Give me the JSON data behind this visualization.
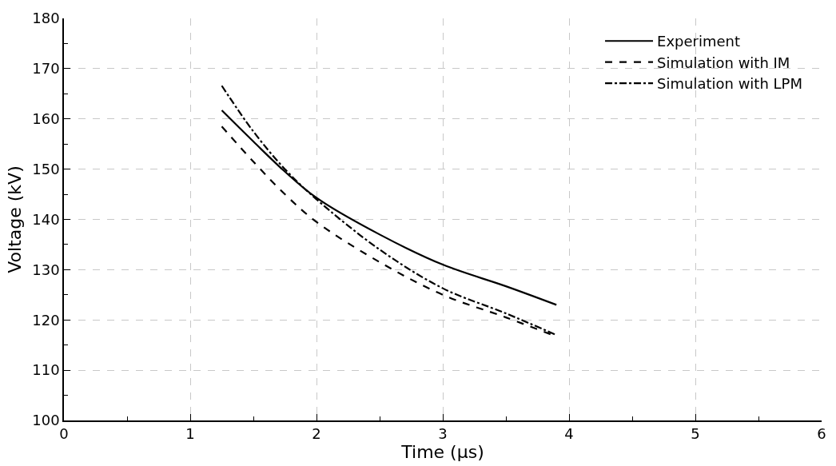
{
  "chart_data": {
    "type": "line",
    "xlabel": "Time (µs)",
    "ylabel": "Voltage (kV)",
    "xlim": [
      0,
      6
    ],
    "xticks": [
      0,
      1,
      2,
      3,
      4,
      5,
      6
    ],
    "ylim": [
      100,
      180
    ],
    "yticks": [
      100,
      110,
      120,
      130,
      140,
      150,
      160,
      170,
      180
    ],
    "grid": true,
    "legend": "top right",
    "marker": "none",
    "x": [
      1.25,
      1.5,
      1.75,
      2,
      2.5,
      3,
      3.5,
      3.9
    ],
    "series": [
      {
        "name": "Experiment",
        "color": "#000000",
        "line_style": "solid",
        "values": [
          161.7,
          155.5,
          149.5,
          144.3,
          137,
          131,
          126.7,
          123
        ]
      },
      {
        "name": "Simulation with IM",
        "color": "#000000",
        "line_style": "dashed",
        "values": [
          158.5,
          151.5,
          145,
          139.5,
          131.5,
          125,
          120.5,
          116.7
        ]
      },
      {
        "name": "Simulation with LPM",
        "color": "#000000",
        "line_style": "dashdot",
        "values": [
          166.6,
          157.5,
          150,
          144,
          134,
          126.3,
          121.3,
          117
        ]
      }
    ]
  }
}
